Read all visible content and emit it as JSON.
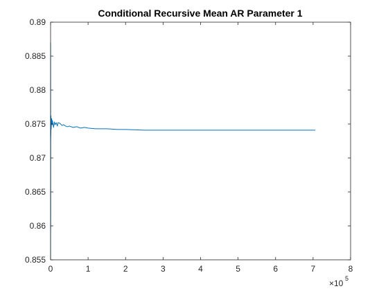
{
  "chart_data": {
    "type": "line",
    "title": "Conditional Recursive Mean AR Parameter 1",
    "xlabel": "",
    "ylabel": "",
    "xlim": [
      0,
      8
    ],
    "ylim": [
      0.855,
      0.89
    ],
    "x_ticks": [
      "0",
      "1",
      "2",
      "3",
      "4",
      "5",
      "6",
      "7",
      "8"
    ],
    "y_ticks": [
      "0.855",
      "0.86",
      "0.865",
      "0.87",
      "0.875",
      "0.88",
      "0.885",
      "0.89"
    ],
    "x_exponent_base": "×10",
    "x_exponent_power": "5",
    "grid": false,
    "legend": "none",
    "line_color": "#0072BD",
    "series": [
      {
        "x": [
          0,
          0.001,
          0.002,
          0.003,
          0.005,
          0.008,
          0.01,
          0.015,
          0.02,
          0.03,
          0.04,
          0.05,
          0.06,
          0.08,
          0.1,
          0.12,
          0.15,
          0.18,
          0.2,
          0.25,
          0.3,
          0.35,
          0.4,
          0.45,
          0.5,
          0.6,
          0.7,
          0.8,
          0.9,
          1.0,
          1.2,
          1.5,
          1.8,
          2.0,
          2.5,
          3.0,
          3.5,
          4.0,
          4.5,
          5.0,
          5.5,
          6.0,
          6.5,
          7.06
        ],
        "values": [
          0.855,
          0.887,
          0.8595,
          0.8723,
          0.8731,
          0.8735,
          0.8762,
          0.8742,
          0.8748,
          0.8758,
          0.8749,
          0.8755,
          0.8751,
          0.8745,
          0.8753,
          0.8749,
          0.8752,
          0.8747,
          0.8752,
          0.8751,
          0.8748,
          0.8749,
          0.8747,
          0.8746,
          0.8747,
          0.8745,
          0.8746,
          0.8744,
          0.8745,
          0.8744,
          0.8743,
          0.8743,
          0.8742,
          0.8742,
          0.8741,
          0.8741,
          0.8741,
          0.8741,
          0.8741,
          0.8741,
          0.8741,
          0.8741,
          0.8741,
          0.8741
        ]
      }
    ]
  }
}
